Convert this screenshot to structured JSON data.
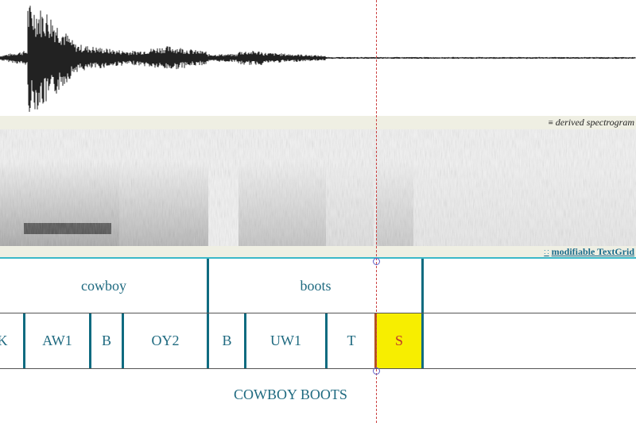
{
  "panels": {
    "spectrogram_label": "derived spectrogram",
    "textgrid_label": "modifiable TextGrid"
  },
  "tiers": {
    "words": [
      "cowboy",
      "boots"
    ],
    "phones": [
      "K",
      "AW1",
      "B",
      "OY2",
      "B",
      "UW1",
      "T",
      "S"
    ],
    "sentence": "COWBOY BOOTS"
  },
  "selection": {
    "phone": "S"
  },
  "colors": {
    "tier_text": "#1f6a80",
    "boundary": "#0f6b80",
    "selection_fill": "#f7ee00",
    "cursor": "#cc4444",
    "panel_header": "#efefe3",
    "tier_border": "#3bb8c8"
  }
}
